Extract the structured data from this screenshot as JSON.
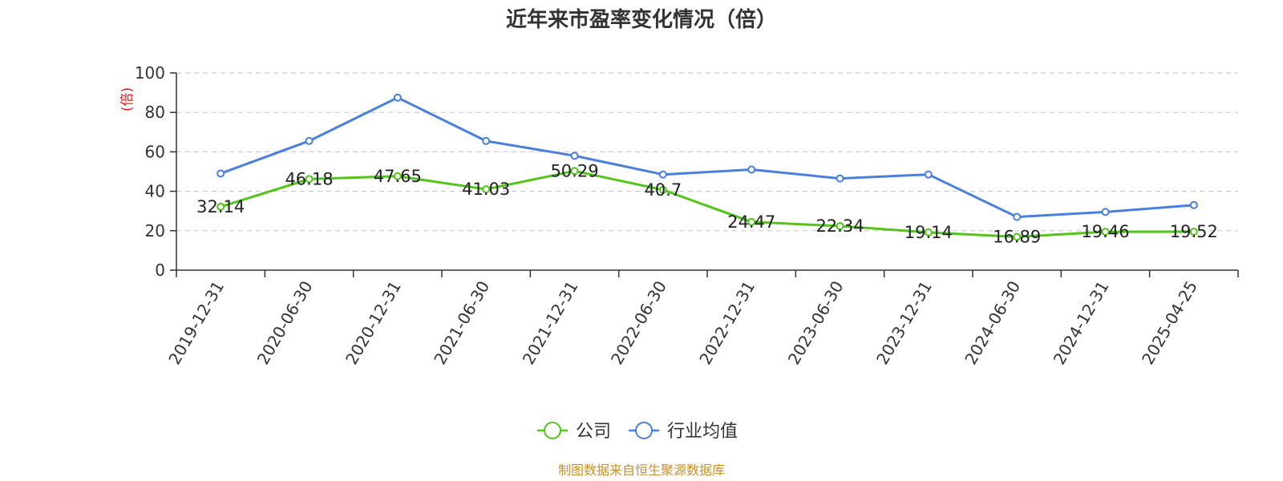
{
  "chart_data": {
    "type": "line",
    "title": "近年来市盈率变化情况（倍）",
    "ylabel": "(倍)",
    "ylim": [
      0,
      100
    ],
    "yticks": [
      0,
      20,
      40,
      60,
      80,
      100
    ],
    "grid": true,
    "legend_position": "bottom-center",
    "categories": [
      "2019-12-31",
      "2020-06-30",
      "2020-12-31",
      "2021-06-30",
      "2021-12-31",
      "2022-06-30",
      "2022-12-31",
      "2023-06-30",
      "2023-12-31",
      "2024-06-30",
      "2024-12-31",
      "2025-04-25"
    ],
    "series": [
      {
        "name": "公司",
        "color": "#52c41a",
        "values": [
          32.14,
          46.18,
          47.65,
          41.03,
          50.29,
          40.7,
          24.47,
          22.34,
          19.14,
          16.89,
          19.46,
          19.52
        ],
        "labels": [
          "32.14",
          "46.18",
          "47.65",
          "41.03",
          "50.29",
          "40.7",
          "24.47",
          "22.34",
          "19.14",
          "16.89",
          "19.46",
          "19.52"
        ],
        "show_labels": true
      },
      {
        "name": "行业均值",
        "color": "#4a7fdc",
        "values": [
          49,
          65.5,
          87.5,
          65.5,
          58,
          48.5,
          51,
          46.5,
          48.5,
          27,
          29.5,
          33
        ],
        "show_labels": false
      }
    ]
  },
  "footer": {
    "source": "制图数据来自恒生聚源数据库"
  },
  "colors": {
    "axis": "#333333",
    "grid": "#cccccc",
    "unit_label": "#e8141b",
    "source": "#c8902a"
  }
}
